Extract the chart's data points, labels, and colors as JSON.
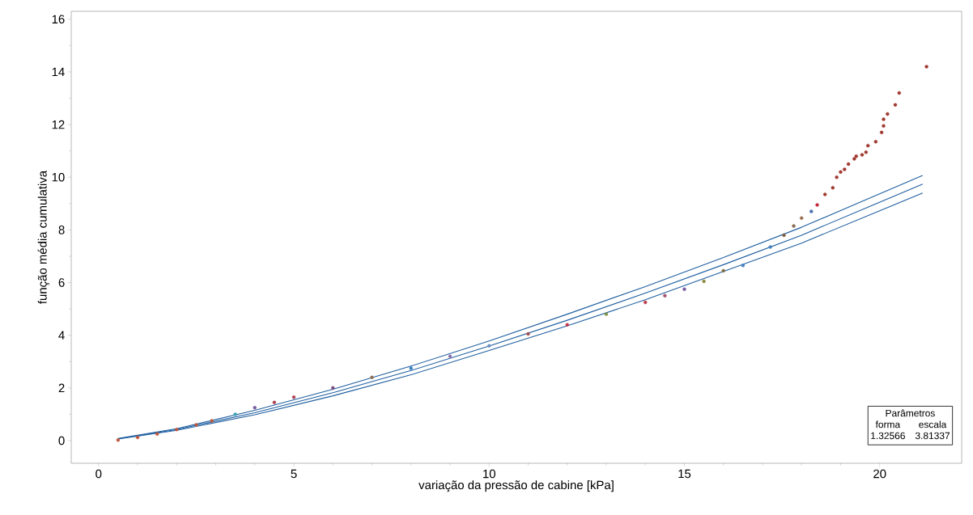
{
  "chart_data": {
    "type": "scatter",
    "xlabel": "variação da pressão de cabine [kPa]",
    "ylabel": "função média cumulativa",
    "xlim": [
      -0.7,
      22.1
    ],
    "ylim": [
      -0.86,
      16.3
    ],
    "xticks": [
      0,
      5,
      10,
      15,
      20
    ],
    "yticks": [
      0,
      2,
      4,
      6,
      8,
      10,
      12,
      14,
      16
    ],
    "grid": false,
    "annotations": [
      "Parâmetros",
      "forma",
      "escala",
      "1.32566",
      "3.81337"
    ],
    "series": [
      {
        "type": "line",
        "marker": "none",
        "color": "#1f5fa0",
        "x": [
          0.5,
          2,
          4,
          6,
          8,
          10,
          12,
          14,
          16,
          18,
          21.1
        ],
        "values": [
          0.08,
          0.45,
          1.15,
          1.95,
          2.83,
          3.78,
          4.8,
          5.85,
          6.95,
          8.1,
          10.07
        ]
      },
      {
        "type": "line",
        "marker": "none",
        "color": "#1f5fa0",
        "x": [
          0.5,
          2,
          4,
          6,
          8,
          10,
          12,
          14,
          16,
          18,
          21.1
        ],
        "values": [
          0.07,
          0.42,
          1.06,
          1.82,
          2.66,
          3.59,
          4.57,
          5.6,
          6.68,
          7.8,
          9.74
        ]
      },
      {
        "type": "line",
        "marker": "none",
        "color": "#1f5fa0",
        "x": [
          0.5,
          2,
          4,
          6,
          8,
          10,
          12,
          14,
          16,
          18,
          21.1
        ],
        "values": [
          0.06,
          0.39,
          0.98,
          1.7,
          2.5,
          3.42,
          4.36,
          5.35,
          6.42,
          7.5,
          9.4
        ]
      },
      {
        "marker": "circle",
        "x": [
          0.5,
          1,
          1.5,
          2,
          2.5,
          2.9,
          3.5,
          4,
          4.5,
          5,
          6,
          7,
          8,
          9,
          10,
          11,
          12,
          13,
          14,
          14.5,
          15,
          15.5,
          16,
          16.5,
          17.2,
          17.55,
          17.8,
          18.0,
          18.25,
          18.4,
          18.6,
          18.8,
          18.9,
          19.0,
          19.1,
          19.2,
          19.35,
          19.4,
          19.55,
          19.65,
          19.7,
          19.9,
          20.05,
          20.1,
          20.1,
          20.2,
          20.4,
          20.5,
          21.2
        ],
        "values": [
          0.02,
          0.12,
          0.25,
          0.42,
          0.6,
          0.75,
          1.0,
          1.25,
          1.45,
          1.65,
          2.0,
          2.4,
          2.75,
          3.2,
          3.6,
          4.05,
          4.4,
          4.8,
          5.25,
          5.5,
          5.75,
          6.05,
          6.45,
          6.65,
          7.35,
          7.8,
          8.15,
          8.45,
          8.7,
          8.95,
          9.35,
          9.6,
          10.0,
          10.2,
          10.3,
          10.5,
          10.7,
          10.8,
          10.85,
          10.95,
          11.2,
          11.35,
          11.7,
          11.95,
          12.2,
          12.4,
          12.75,
          13.2,
          14.2
        ],
        "colors": [
          "#c0583f",
          "#c0583f",
          "#c0583f",
          "#c0583f",
          "#c0583f",
          "#c0583f",
          "#3aa0b8",
          "#7a5aa0",
          "#b04050",
          "#b04050",
          "#7a4a80",
          "#8a6a50",
          "#3a80c0",
          "#8a70b0",
          "#6a90c0",
          "#a05050",
          "#c03a4a",
          "#7a9040",
          "#c03a4a",
          "#a05070",
          "#7a5aa0",
          "#8a8a40",
          "#7a6a40",
          "#4a80c0",
          "#4a80c0",
          "#806040",
          "#8a6a50",
          "#9a7050",
          "#4a70b0",
          "#c02a3a",
          "#a03a30",
          "#a03a30",
          "#a03a30",
          "#a03a30",
          "#a03a30",
          "#a03a30",
          "#a03a30",
          "#a03a30",
          "#a03a30",
          "#a03a30",
          "#a03a30",
          "#a03a30",
          "#a03a30",
          "#a03a30",
          "#a03a30",
          "#a03a30",
          "#a03a30",
          "#a03a30",
          "#a03a30"
        ]
      }
    ]
  }
}
